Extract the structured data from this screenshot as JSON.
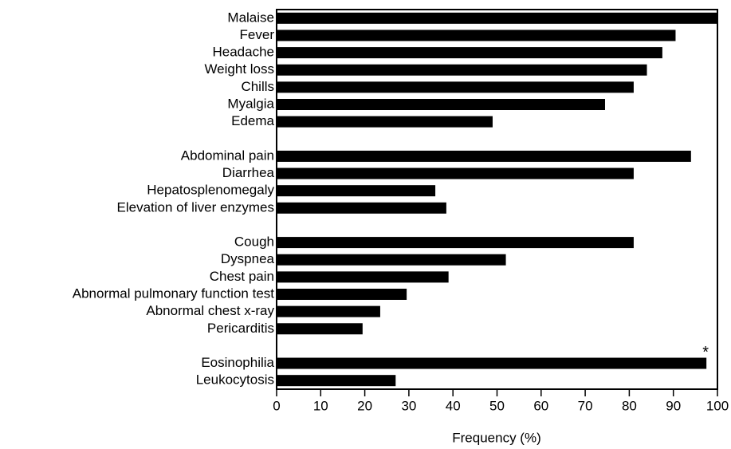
{
  "chart_data": {
    "type": "hbar",
    "categories": [
      "Malaise",
      "Fever",
      "Headache",
      "Weight loss",
      "Chills",
      "Myalgia",
      "Edema",
      null,
      "Abdominal pain",
      "Diarrhea",
      "Hepatosplenomegaly",
      "Elevation of liver enzymes",
      null,
      "Cough",
      "Dyspnea",
      "Chest pain",
      "Abnormal pulmonary function test",
      "Abnormal chest x-ray",
      "Pericarditis",
      null,
      "Eosinophilia",
      "Leukocytosis"
    ],
    "values": [
      100,
      90.5,
      87.5,
      84,
      81,
      74.5,
      49,
      null,
      94,
      81,
      36,
      38.5,
      null,
      81,
      52,
      39,
      29.5,
      23.5,
      19.5,
      null,
      97.5,
      27
    ],
    "color": "#000000",
    "xlabel": "Frequency (%)",
    "xlim": [
      0,
      100
    ],
    "xticks": [
      0,
      10,
      20,
      30,
      40,
      50,
      60,
      70,
      80,
      90,
      100
    ],
    "annotation": "*"
  }
}
